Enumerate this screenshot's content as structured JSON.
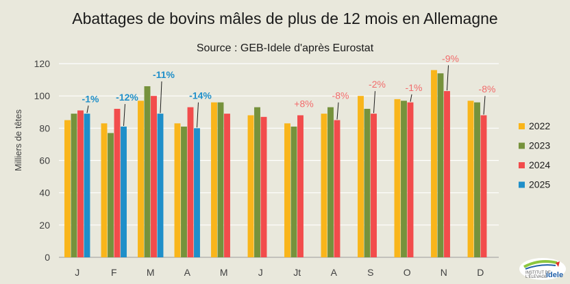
{
  "chart_data": {
    "type": "bar",
    "title": "Abattages de bovins mâles de plus de 12 mois en Allemagne",
    "subtitle": "Source : GEB-Idele d'après Eurostat",
    "ylabel": "Milliers de têtes",
    "xlabel": "",
    "ylim": [
      0,
      120
    ],
    "yticks": [
      0,
      20,
      40,
      60,
      80,
      100,
      120
    ],
    "grid": true,
    "legend_position": "right",
    "categories": [
      "J",
      "F",
      "M",
      "A",
      "M",
      "J",
      "Jt",
      "A",
      "S",
      "O",
      "N",
      "D"
    ],
    "series": [
      {
        "name": "2022",
        "color": "#f9b51b",
        "values": [
          85,
          83,
          97,
          83,
          96,
          88,
          83,
          89,
          100,
          98,
          116,
          97
        ]
      },
      {
        "name": "2023",
        "color": "#76923c",
        "values": [
          89,
          77,
          106,
          81,
          96,
          93,
          81,
          93,
          92,
          97,
          114,
          96
        ]
      },
      {
        "name": "2024",
        "color": "#f24c4c",
        "values": [
          91,
          92,
          100,
          93,
          89,
          87,
          88,
          85,
          89,
          96,
          103,
          88
        ]
      },
      {
        "name": "2025",
        "color": "#1f8fc9",
        "values": [
          89,
          81,
          89,
          80,
          null,
          null,
          null,
          null,
          null,
          null,
          null,
          null
        ]
      }
    ],
    "annotations": [
      {
        "category_index": 0,
        "text": "-1%",
        "color": "#1f8fc9",
        "bold": true
      },
      {
        "category_index": 1,
        "text": "-12%",
        "color": "#1f8fc9",
        "bold": true
      },
      {
        "category_index": 2,
        "text": "-11%",
        "color": "#1f8fc9",
        "bold": true
      },
      {
        "category_index": 3,
        "text": "-14%",
        "color": "#1f8fc9",
        "bold": true
      },
      {
        "category_index": 6,
        "text": "+8%",
        "color": "#f26b6b",
        "bold": false
      },
      {
        "category_index": 7,
        "text": "-8%",
        "color": "#f26b6b",
        "bold": false
      },
      {
        "category_index": 8,
        "text": "-2%",
        "color": "#f26b6b",
        "bold": false
      },
      {
        "category_index": 9,
        "text": "-1%",
        "color": "#f26b6b",
        "bold": false
      },
      {
        "category_index": 10,
        "text": "-9%",
        "color": "#f26b6b",
        "bold": false
      },
      {
        "category_index": 11,
        "text": "-8%",
        "color": "#f26b6b",
        "bold": false
      }
    ]
  },
  "logo": {
    "line1": "INSTITUT DE",
    "line2": "L'ÉLEVAGE",
    "brand": "idele"
  }
}
